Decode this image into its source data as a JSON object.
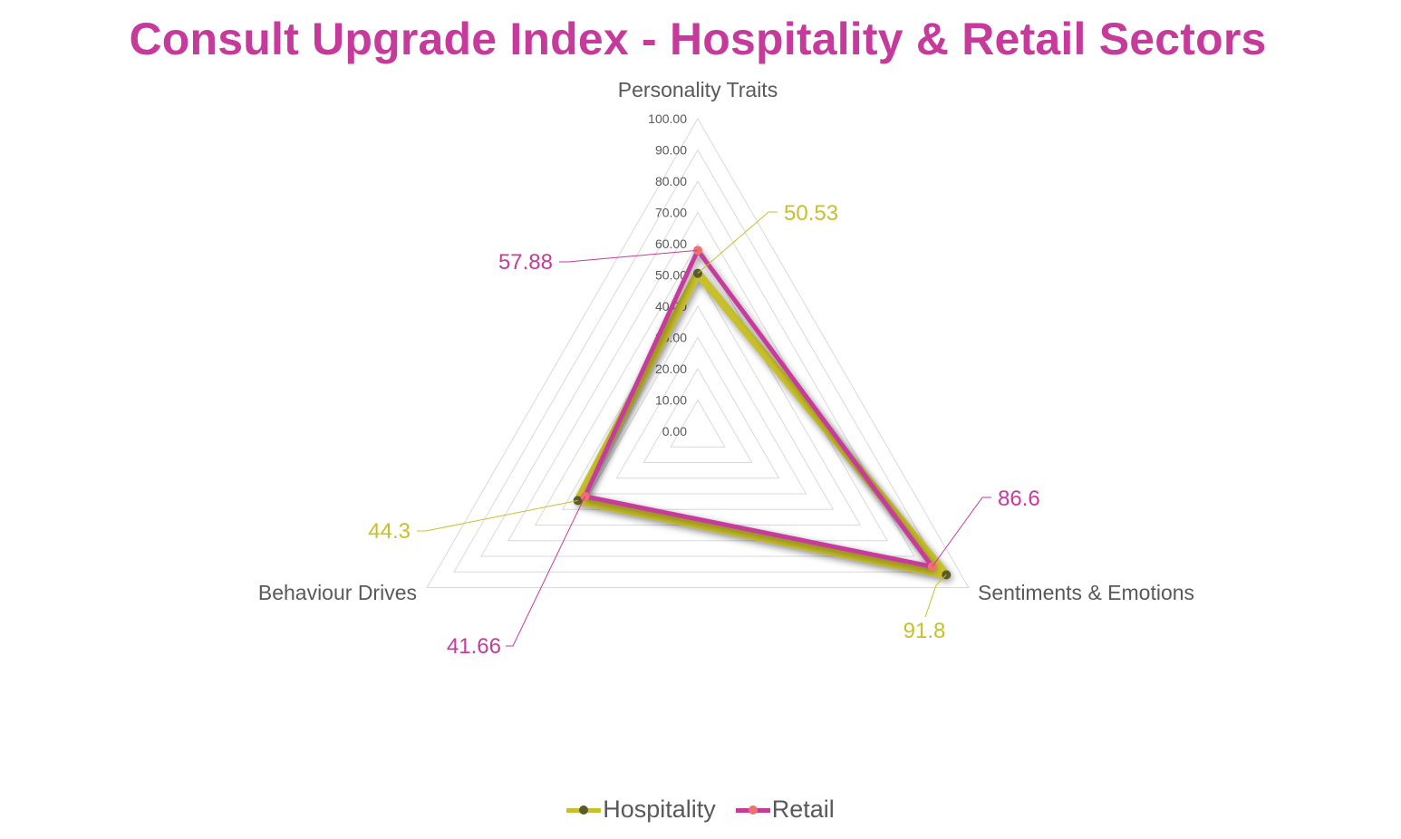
{
  "title": "Consult Upgrade Index - Hospitality & Retail Sectors",
  "chart_data": {
    "type": "radar",
    "title": "Consult Upgrade Index - Hospitality & Retail Sectors",
    "axes": [
      "Personality Traits",
      "Sentiments & Emotions",
      "Behaviour Drives"
    ],
    "range": [
      0,
      100
    ],
    "tick_step": 10,
    "ticks": [
      "0.00",
      "10.00",
      "20.00",
      "30.00",
      "40.00",
      "50.00",
      "60.00",
      "70.00",
      "80.00",
      "90.00",
      "100.00"
    ],
    "series": [
      {
        "name": "Hospitality",
        "values": [
          50.53,
          91.8,
          44.3
        ],
        "labels": [
          "50.53",
          "91.8",
          "44.3"
        ],
        "line_color": "#c8c02a",
        "marker_color": "#5a5a2a"
      },
      {
        "name": "Retail",
        "values": [
          57.88,
          86.6,
          41.66
        ],
        "labels": [
          "57.88",
          "86.6",
          "41.66"
        ],
        "line_color": "#c63a9b",
        "marker_color": "#f07070"
      }
    ],
    "grid": true,
    "legend_position": "bottom"
  }
}
